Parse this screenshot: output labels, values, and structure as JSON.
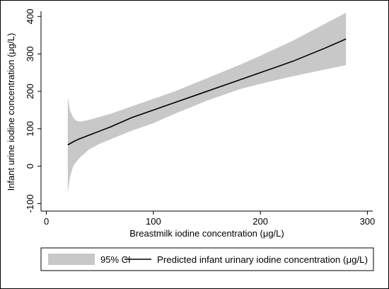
{
  "chart_data": {
    "type": "area",
    "xlabel": "Breastmilk iodine concentration (μg/L)",
    "ylabel": "Infant urine iodine concentration (μg/L)",
    "xlim": [
      -5,
      305
    ],
    "ylim": [
      -120,
      410
    ],
    "x_ticks": [
      0,
      100,
      200,
      300
    ],
    "y_ticks": [
      -100,
      0,
      100,
      200,
      300,
      400
    ],
    "x_tick_labels": [
      "0",
      "100",
      "200",
      "300"
    ],
    "y_tick_labels": [
      "-100",
      "0",
      "100",
      "200",
      "300",
      "400"
    ],
    "grid": false,
    "legend_position": "bottom",
    "colors": {
      "ci_band": "#c8c8c8",
      "line": "#000000"
    },
    "series": [
      {
        "name": "95% CI",
        "kind": "band",
        "x": [
          20,
          22,
          25,
          28,
          32,
          40,
          50,
          60,
          80,
          100,
          120,
          150,
          180,
          200,
          230,
          260,
          280
        ],
        "lower": [
          -70,
          -30,
          0,
          12,
          25,
          45,
          60,
          72,
          95,
          115,
          140,
          175,
          205,
          220,
          240,
          258,
          270
        ],
        "upper": [
          185,
          150,
          130,
          121,
          119,
          124,
          132,
          140,
          160,
          180,
          200,
          235,
          270,
          295,
          335,
          380,
          410
        ]
      },
      {
        "name": "Predicted infant urinary iodine concentration (μg/L)",
        "kind": "line",
        "x": [
          20,
          25,
          30,
          40,
          50,
          60,
          80,
          100,
          120,
          150,
          180,
          200,
          230,
          260,
          280
        ],
        "y": [
          57,
          65,
          72,
          83,
          94,
          105,
          130,
          150,
          170,
          200,
          230,
          250,
          280,
          315,
          340
        ]
      }
    ]
  }
}
